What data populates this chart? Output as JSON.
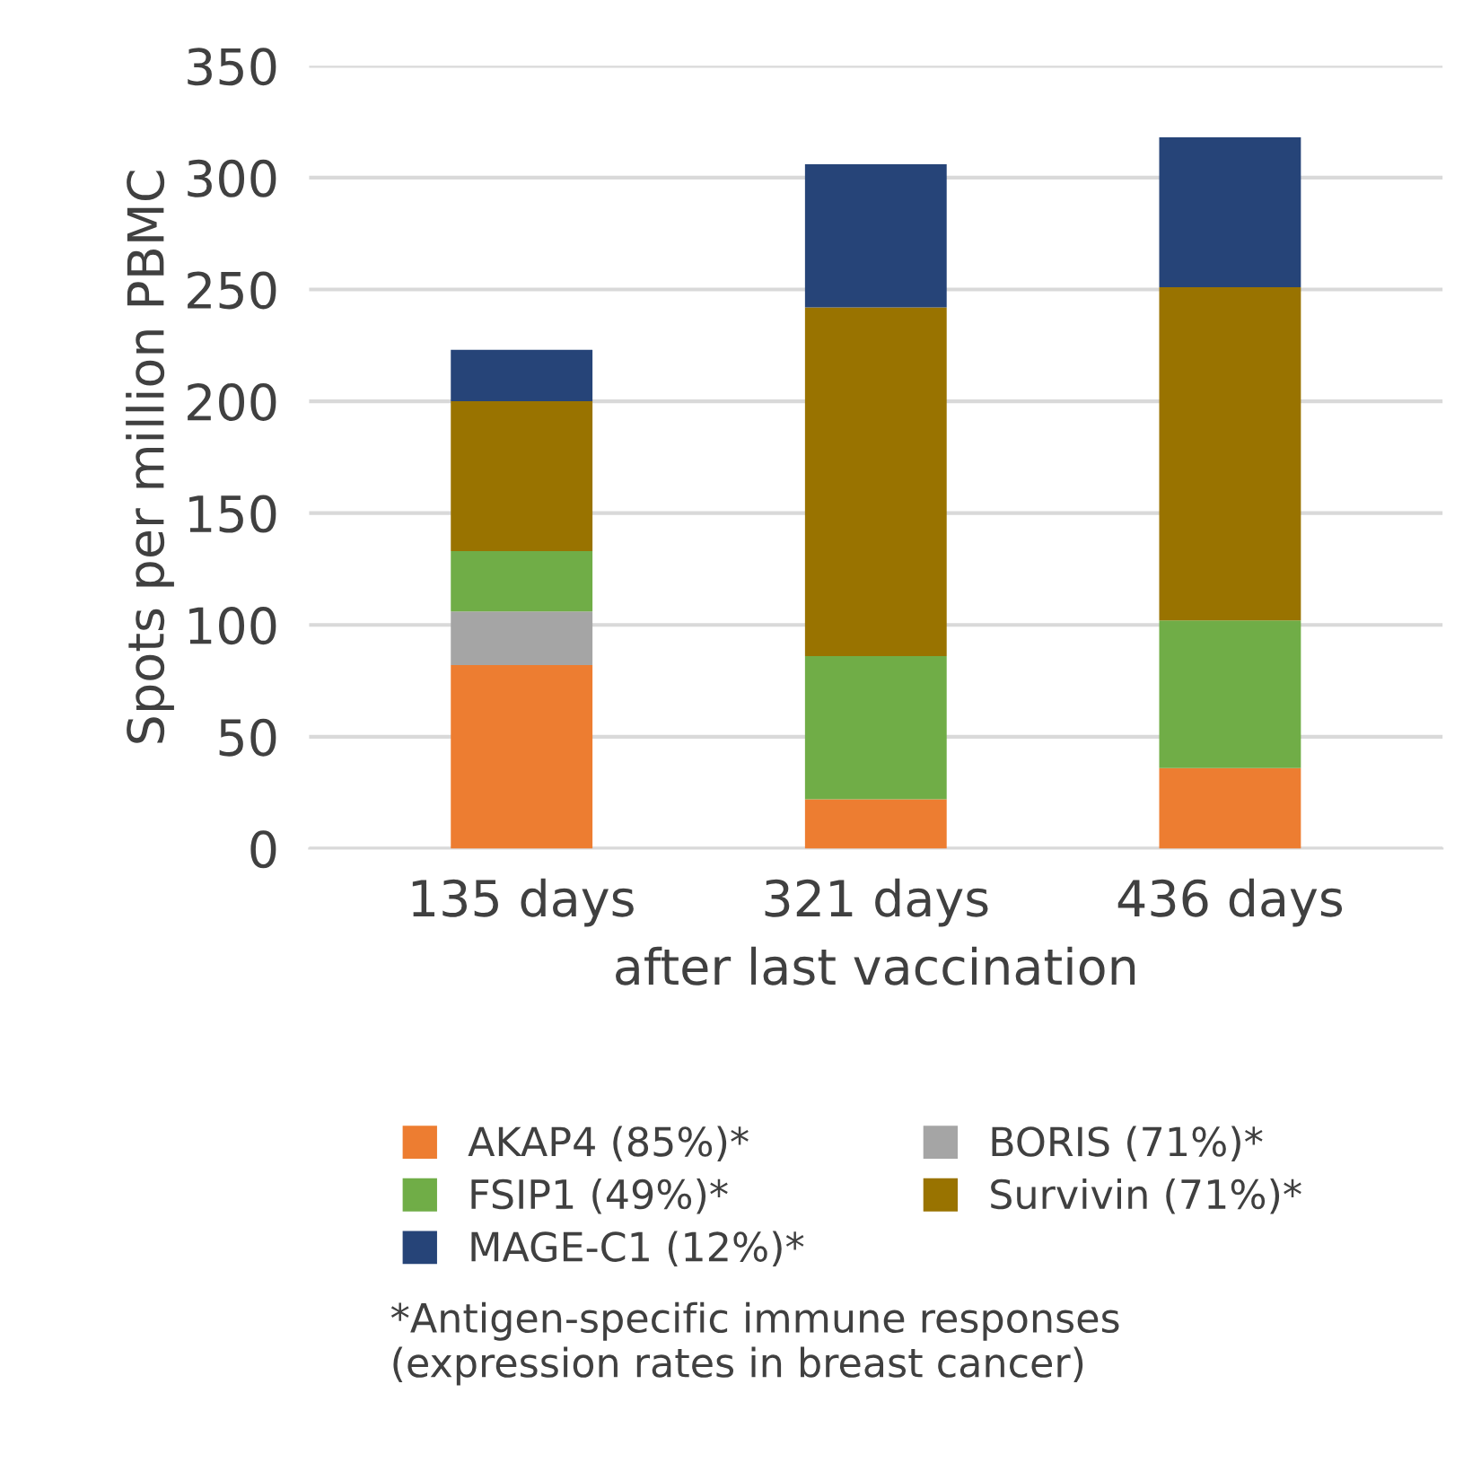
{
  "chart_data": {
    "type": "bar",
    "stacked": true,
    "ylabel": "Spots per million PBMC",
    "xlabel": "after last vaccination",
    "categories": [
      "135 days",
      "321 days",
      "436 days"
    ],
    "series": [
      {
        "name": "AKAP4 (85%)*",
        "color": "#ed7d31",
        "values": [
          82,
          22,
          36
        ]
      },
      {
        "name": "BORIS (71%)*",
        "color": "#a5a5a5",
        "values": [
          24,
          0,
          0
        ]
      },
      {
        "name": "FSIP1 (49%)*",
        "color": "#70ad47",
        "values": [
          27,
          64,
          66
        ]
      },
      {
        "name": "Survivin (71%)*",
        "color": "#997300",
        "values": [
          67,
          156,
          149
        ]
      },
      {
        "name": "MAGE-C1 (12%)*",
        "color": "#264478",
        "values": [
          23,
          64,
          67
        ]
      }
    ],
    "ylim": [
      0,
      350
    ],
    "yticks": [
      0,
      50,
      100,
      150,
      200,
      250,
      300,
      350
    ],
    "grid": "y",
    "legend": "bottom",
    "annotations": [
      "*Antigen-specific immune responses\n(expression rates in breast cancer)"
    ]
  }
}
